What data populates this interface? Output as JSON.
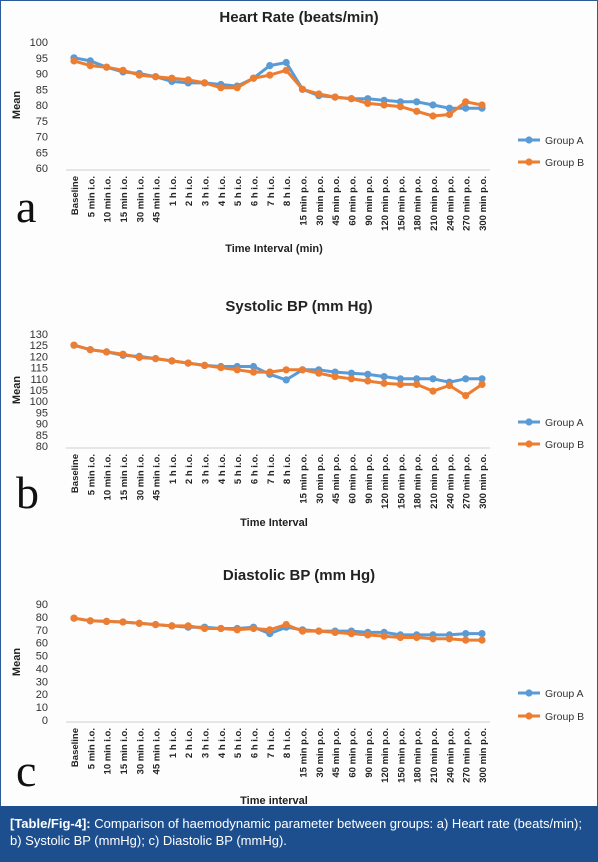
{
  "colors": {
    "group_a": "#5b9bd5",
    "group_b": "#ed7d31",
    "caption_bg": "#1d4f8f"
  },
  "panels": [
    {
      "letter": "a"
    },
    {
      "letter": "b"
    },
    {
      "letter": "c"
    }
  ],
  "caption": {
    "label": "[Table/Fig-4]:",
    "text": " Comparison of haemodynamic parameter between groups: a) Heart rate (beats/min); b) Systolic BP (mmHg); c) Diastolic BP (mmHg)."
  },
  "chart_data": [
    {
      "type": "line",
      "title": "Heart Rate (beats/min)",
      "xlabel": "Time Interval (min)",
      "ylabel": "Mean",
      "ylim": [
        60,
        100
      ],
      "yticks": [
        60,
        65,
        70,
        75,
        80,
        85,
        90,
        95,
        100
      ],
      "grid": false,
      "legend_position": "right",
      "categories": [
        "Baseline",
        "5 min i.o.",
        "10 min i.o.",
        "15 min i.o.",
        "30 min i.o.",
        "45 min i.o.",
        "1 h i.o.",
        "2 h i.o.",
        "3 h i.o.",
        "4 h i.o.",
        "5 h i.o.",
        "6 h i.o.",
        "7 h i.o.",
        "8 h i.o.",
        "15 min p.o.",
        "30 min p.o.",
        "45 min p.o.",
        "60 min p.o.",
        "90 min p.o.",
        "120 min p.o.",
        "150 min p.o.",
        "180 min p.o.",
        "210 min p.o.",
        "240 min p.o.",
        "270 min p.o.",
        "300 min p.o."
      ],
      "series": [
        {
          "name": "Group A",
          "values": [
            95,
            94,
            92,
            90.5,
            90,
            89,
            87.5,
            87,
            87,
            86.5,
            86,
            88.5,
            92.5,
            93.5,
            85,
            83,
            82.5,
            82,
            82,
            81.5,
            81,
            81,
            80,
            79,
            79,
            79
          ]
        },
        {
          "name": "Group B",
          "values": [
            94,
            92.5,
            92,
            91,
            89.5,
            89,
            88.5,
            88,
            87,
            85.5,
            85.5,
            88.5,
            89.5,
            91,
            85,
            83.5,
            82.5,
            82,
            80.5,
            80,
            79.5,
            78,
            76.5,
            77,
            81,
            80
          ]
        }
      ]
    },
    {
      "type": "line",
      "title": "Systolic BP (mm Hg)",
      "xlabel": "Time Interval",
      "ylabel": "Mean",
      "ylim": [
        80,
        130
      ],
      "yticks": [
        80,
        85,
        90,
        95,
        100,
        105,
        110,
        115,
        120,
        125,
        130
      ],
      "grid": false,
      "legend_position": "right",
      "categories": [
        "Baseline",
        "5 min i.o.",
        "10 min i.o.",
        "15 min i.o.",
        "30 min i.o.",
        "45 min i.o.",
        "1 h i.o.",
        "2 h i.o.",
        "3 h i.o.",
        "4 h i.o.",
        "5 h i.o.",
        "6 h i.o.",
        "7 h i.o.",
        "8 h i.o.",
        "15 min p.o.",
        "30 min p.o.",
        "45 min p.o.",
        "60 min p.o.",
        "90 min p.o.",
        "120 min p.o.",
        "150 min p.o.",
        "180 min p.o.",
        "210 min p.o.",
        "240 min p.o.",
        "270 min p.o.",
        "300 min p.o."
      ],
      "series": [
        {
          "name": "Group A",
          "values": [
            125,
            123,
            122,
            120.5,
            120,
            119,
            118,
            117,
            116,
            115.5,
            115.5,
            115.5,
            112,
            109.5,
            114,
            114,
            113,
            112.5,
            112,
            111,
            110,
            110,
            110,
            108.5,
            110,
            110
          ]
        },
        {
          "name": "Group B",
          "values": [
            125,
            123,
            122,
            121,
            119.5,
            119,
            118,
            117,
            116,
            115,
            114,
            113,
            113,
            114,
            114,
            112.5,
            111,
            110,
            109,
            108,
            107.5,
            107.5,
            104.5,
            107,
            102.5,
            107.5
          ]
        }
      ]
    },
    {
      "type": "line",
      "title": "Diastolic BP (mm Hg)",
      "xlabel": "Time interval",
      "ylabel": "Mean",
      "ylim": [
        0,
        90
      ],
      "yticks": [
        0,
        10,
        20,
        30,
        40,
        50,
        60,
        70,
        80,
        90
      ],
      "grid": false,
      "legend_position": "right",
      "categories": [
        "Baseline",
        "5 min i.o.",
        "10 min i.o.",
        "15 min i.o.",
        "30 min i.o.",
        "45 min i.o.",
        "1 h i.o.",
        "2 h i.o.",
        "3 h i.o.",
        "4 h i.o.",
        "5 h i.o.",
        "6 h i.o.",
        "7 h i.o.",
        "8 h i.o.",
        "15 min p.o.",
        "30 min p.o.",
        "45 min p.o.",
        "60 min p.o.",
        "90 min p.o.",
        "120 min p.o.",
        "150 min p.o.",
        "180 min p.o.",
        "210 min p.o.",
        "240 min p.o.",
        "270 min p.o.",
        "300 min p.o."
      ],
      "series": [
        {
          "name": "Group A",
          "values": [
            79,
            77,
            76.5,
            76,
            75,
            74,
            73,
            72,
            72,
            71,
            71,
            72,
            67,
            72,
            70,
            69,
            69,
            69,
            68,
            68,
            66,
            66,
            66,
            66,
            67,
            67
          ]
        },
        {
          "name": "Group B",
          "values": [
            79,
            77,
            76.5,
            76,
            75,
            74,
            73,
            73,
            71,
            71,
            70,
            71,
            70,
            74,
            69,
            69,
            68,
            67,
            66,
            65,
            64,
            64,
            63,
            63,
            62,
            62
          ]
        }
      ]
    }
  ]
}
